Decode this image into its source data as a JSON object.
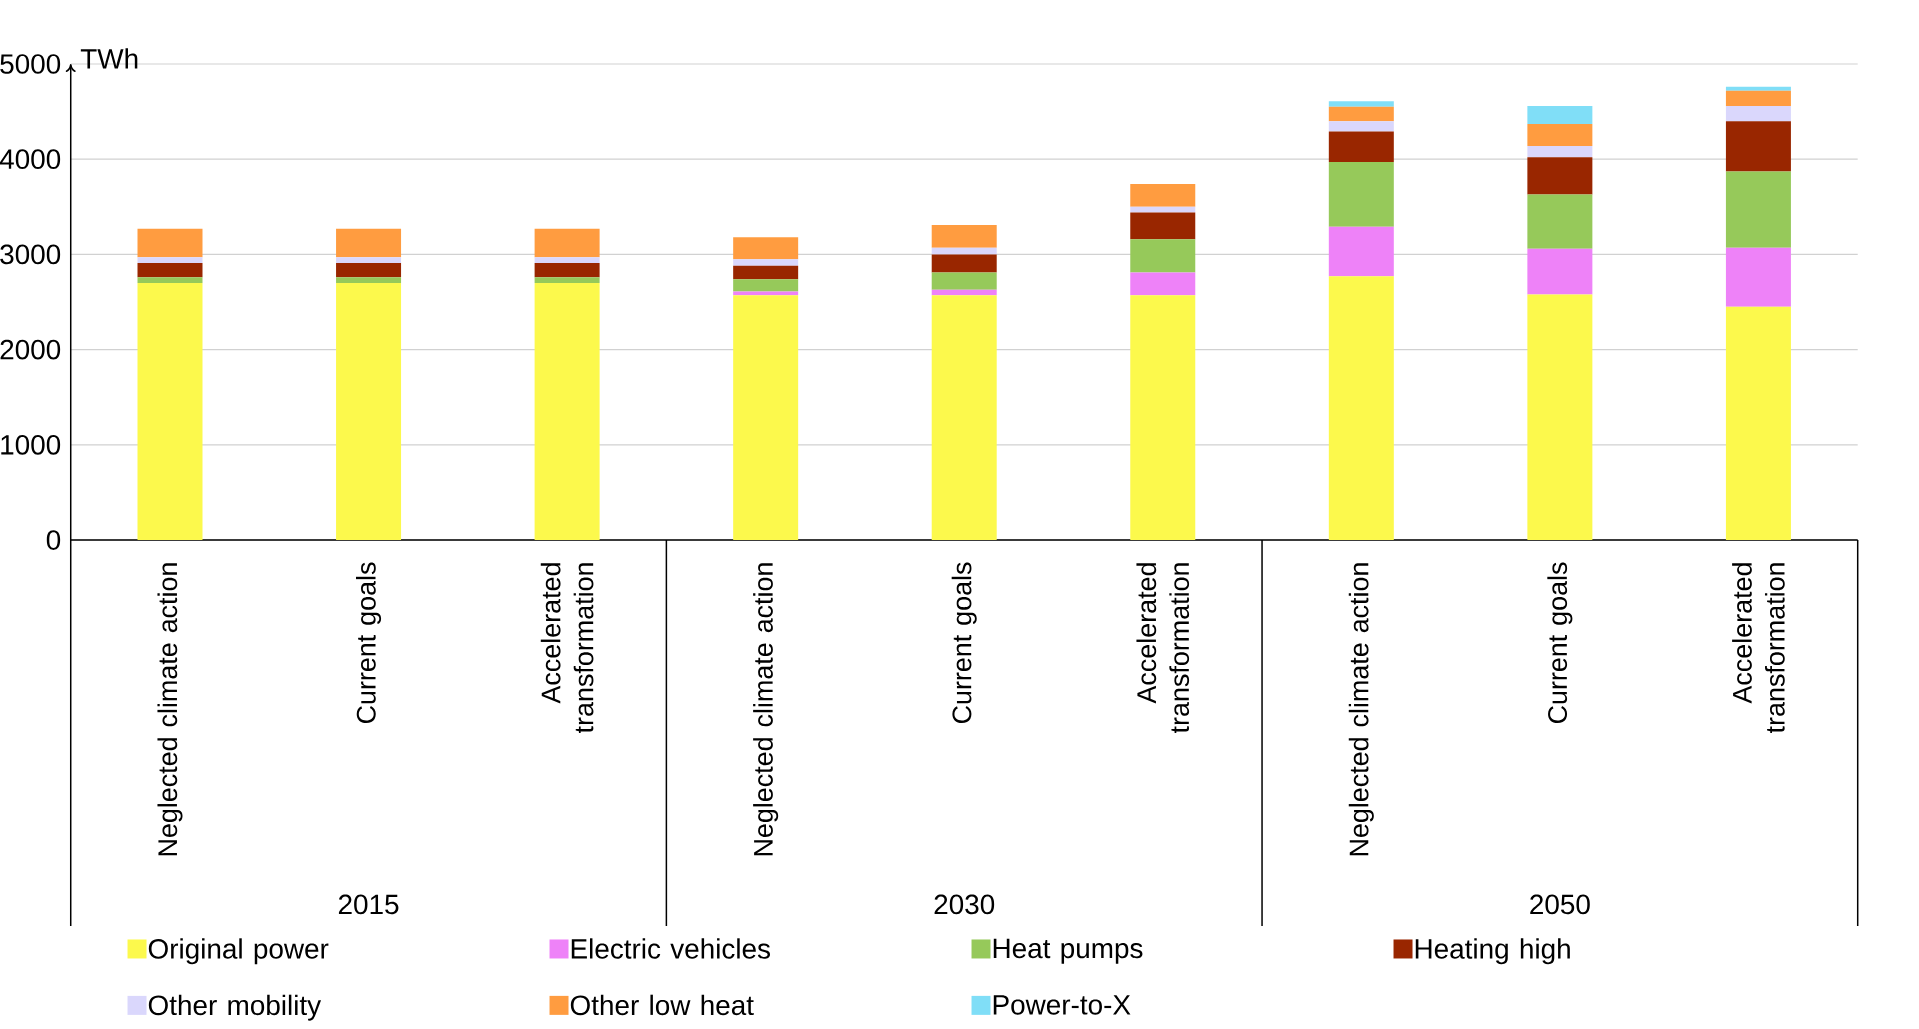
{
  "chart_data": {
    "type": "bar",
    "stacked": true,
    "ylabel": "TWh",
    "categories": [
      "Neglected climate action",
      "Current goals",
      "Accelerated transformation",
      "Neglected climate action",
      "Current goals",
      "Accelerated transformation",
      "Neglected climate action",
      "Current goals",
      "Accelerated transformation"
    ],
    "annotations": [
      "2015",
      "2030",
      "2050"
    ],
    "series": [
      {
        "name": "Original power",
        "color": "#fcf94c",
        "values": [
          2700,
          2700,
          2700,
          2570,
          2570,
          2570,
          2770,
          2580,
          2450
        ]
      },
      {
        "name": "Electric vehicles",
        "color": "#ee82f8",
        "values": [
          0,
          0,
          0,
          40,
          60,
          240,
          520,
          480,
          620
        ]
      },
      {
        "name": "Heat pumps",
        "color": "#96c95a",
        "values": [
          60,
          60,
          60,
          130,
          180,
          350,
          680,
          570,
          800
        ]
      },
      {
        "name": "Heating high",
        "color": "#992600",
        "values": [
          150,
          150,
          150,
          140,
          190,
          280,
          320,
          390,
          530
        ]
      },
      {
        "name": "Other mobility",
        "color": "#dad7fc",
        "values": [
          60,
          60,
          60,
          70,
          70,
          60,
          110,
          120,
          160
        ]
      },
      {
        "name": "Other low heat",
        "color": "#ff9c40",
        "values": [
          300,
          300,
          300,
          230,
          240,
          240,
          150,
          230,
          160
        ]
      },
      {
        "name": "Power-to-X",
        "color": "#80def7",
        "values": [
          0,
          0,
          0,
          0,
          0,
          0,
          60,
          190,
          40
        ]
      }
    ],
    "ylim": [
      0,
      5000
    ],
    "yticks": [
      0,
      1000,
      2000,
      3000,
      4000,
      5000
    ],
    "grid": "y",
    "legend": "bottom"
  }
}
